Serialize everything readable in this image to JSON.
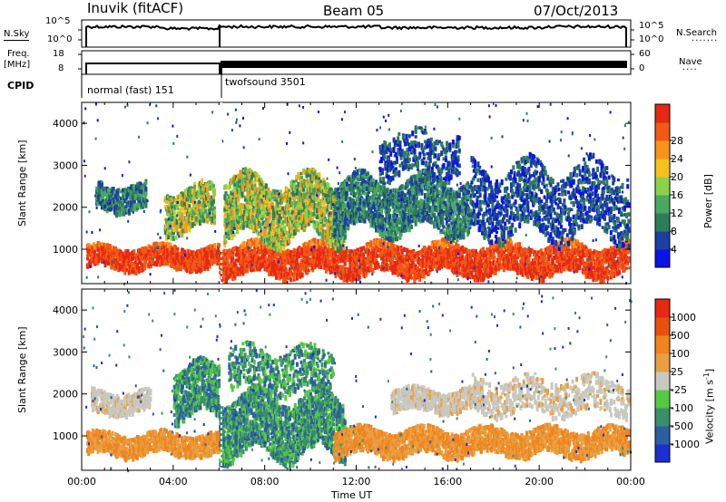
{
  "header": {
    "station": "Inuvik (fitACF)",
    "beam": "Beam 05",
    "date": "07/Oct/2013"
  },
  "strips": {
    "nsky_label": "N.Sky",
    "nsearch_label": "N.Search",
    "nsky_ticks": [
      "10^5",
      "10^0"
    ],
    "freq_label_line1": "Freq.",
    "freq_label_line2": "[MHz]",
    "freq_ticks": [
      "18",
      "8"
    ],
    "nave_label": "Nave",
    "nave_ticks": [
      "60",
      "0"
    ],
    "cpid_label": "CPID",
    "modes": [
      {
        "name": "normal (fast) 151",
        "start_hour": 0,
        "end_hour": 6
      },
      {
        "name": "twofsound 3501",
        "start_hour": 6,
        "end_hour": 24
      }
    ]
  },
  "colors": {
    "power": [
      "#0a14e6",
      "#1c3fa0",
      "#2f7c58",
      "#4aa860",
      "#8bd24a",
      "#f4c21c",
      "#f7941d",
      "#f05a14",
      "#e62814"
    ],
    "velocity": [
      "#1c2fd0",
      "#2b5fa0",
      "#3a8f6a",
      "#57c842",
      "#c8c8c0",
      "#e8a040",
      "#ef8420",
      "#e85010",
      "#e62814"
    ],
    "ground_scatter": "#a0a0a0"
  },
  "chart_data": [
    {
      "type": "heatmap",
      "title": "",
      "xlabel": "",
      "ylabel": "Slant Range [km]",
      "xlim": [
        0,
        24
      ],
      "ylim": [
        180,
        4500
      ],
      "y_ticks": [
        "1000",
        "2000",
        "3000",
        "4000"
      ],
      "colorbar_label": "Power [dB]",
      "colorbar_ticks": [
        "4",
        "8",
        "12",
        "16",
        "20",
        "24",
        "28"
      ],
      "colorbar_range": [
        0,
        32
      ],
      "bands": [
        {
          "x_start": 0.2,
          "x_end": 6.0,
          "y_center": 850,
          "y_halfwidth": 250,
          "level": "high"
        },
        {
          "x_start": 0.6,
          "x_end": 2.8,
          "y_center": 2300,
          "y_halfwidth": 300,
          "level": "low"
        },
        {
          "x_start": 3.6,
          "x_end": 5.8,
          "y_center": 2000,
          "y_halfwidth": 500,
          "level": "mid"
        },
        {
          "x_start": 6.0,
          "x_end": 23.9,
          "y_center": 800,
          "y_halfwidth": 350,
          "level": "high"
        },
        {
          "x_start": 6.2,
          "x_end": 11.5,
          "y_center": 2000,
          "y_halfwidth": 700,
          "level": "mid"
        },
        {
          "x_start": 11.0,
          "x_end": 17.0,
          "y_center": 2100,
          "y_halfwidth": 600,
          "level": "low"
        },
        {
          "x_start": 13.0,
          "x_end": 16.5,
          "y_center": 3300,
          "y_halfwidth": 500,
          "level": "sparse"
        },
        {
          "x_start": 17.0,
          "x_end": 23.9,
          "y_center": 2200,
          "y_halfwidth": 800,
          "level": "sparse"
        }
      ]
    },
    {
      "type": "heatmap",
      "title": "",
      "xlabel": "Time UT",
      "ylabel": "Slant Range [km]",
      "xlim": [
        0,
        24
      ],
      "ylim": [
        180,
        4500
      ],
      "x_ticks": [
        "00:00",
        "04:00",
        "08:00",
        "12:00",
        "16:00",
        "20:00",
        "00:00"
      ],
      "y_ticks": [
        "1000",
        "2000",
        "3000",
        "4000"
      ],
      "colorbar_label": "Velocity [m s",
      "colorbar_label_sup": "-1",
      "colorbar_label_end": "]",
      "colorbar_ticks": [
        "1000",
        "500",
        "100",
        "25",
        "-25",
        "-100",
        "-500",
        "-1000"
      ],
      "bands": [
        {
          "x_start": 0.2,
          "x_end": 6.0,
          "y_center": 850,
          "y_halfwidth": 250,
          "level": "negative"
        },
        {
          "x_start": 0.4,
          "x_end": 3.0,
          "y_center": 1850,
          "y_halfwidth": 250,
          "level": "ground"
        },
        {
          "x_start": 4.0,
          "x_end": 6.0,
          "y_center": 2100,
          "y_halfwidth": 600,
          "level": "positive"
        },
        {
          "x_start": 6.0,
          "x_end": 11.5,
          "y_center": 1300,
          "y_halfwidth": 700,
          "level": "positive"
        },
        {
          "x_start": 6.4,
          "x_end": 11.0,
          "y_center": 2600,
          "y_halfwidth": 500,
          "level": "positive-sparse"
        },
        {
          "x_start": 11.0,
          "x_end": 23.9,
          "y_center": 900,
          "y_halfwidth": 300,
          "level": "negative"
        },
        {
          "x_start": 13.5,
          "x_end": 17.5,
          "y_center": 1900,
          "y_halfwidth": 250,
          "level": "ground"
        },
        {
          "x_start": 17.0,
          "x_end": 23.9,
          "y_center": 2000,
          "y_halfwidth": 400,
          "level": "ground-sparse"
        }
      ]
    }
  ]
}
